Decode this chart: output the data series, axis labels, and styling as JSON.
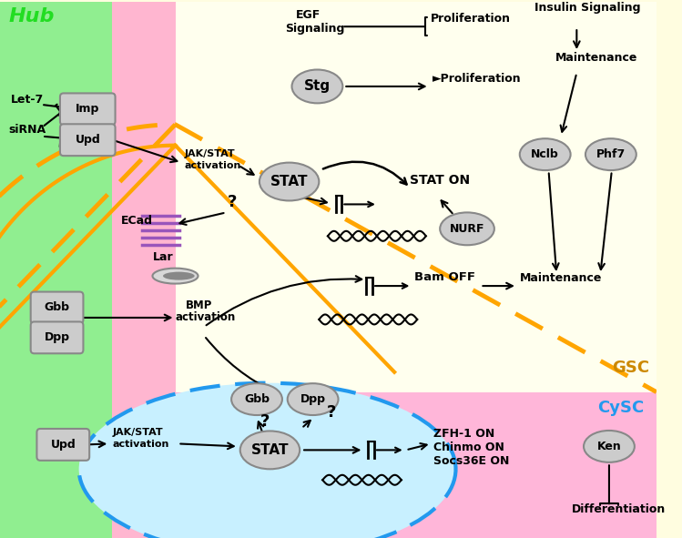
{
  "fig_width": 7.49,
  "fig_height": 5.91,
  "dpi": 100,
  "colors": {
    "hub_green": "#90EE90",
    "hub_label": "#22DD22",
    "pink_strip": "#FFB6D0",
    "gsc_yellow": "#FFFDE0",
    "lower_bg": "#FFB6D9",
    "cysc_blue_fill": "#C8F0FF",
    "cysc_blue_border": "#2299EE",
    "node_fill": "#CCCCCC",
    "node_edge": "#888888",
    "gsc_border": "#FFA500",
    "purple_ecad": "#9955BB"
  },
  "hub_label": "Hub",
  "gsc_label": "GSC",
  "cysc_label": "CySC"
}
